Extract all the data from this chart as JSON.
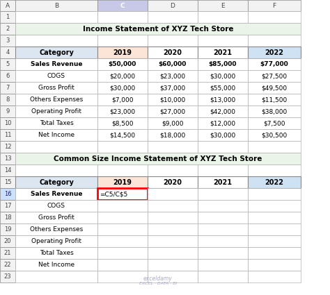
{
  "title1": "Income Statement of XYZ Tech Store",
  "title2": "Common Size Income Statement of XYZ Tech Store",
  "income_rows": [
    [
      "Sales Revenue",
      "$50,000",
      "$60,000",
      "$85,000",
      "$77,000"
    ],
    [
      "COGS",
      "$20,000",
      "$23,000",
      "$30,000",
      "$27,500"
    ],
    [
      "Gross Profit",
      "$30,000",
      "$37,000",
      "$55,000",
      "$49,500"
    ],
    [
      "Others Expenses",
      "$7,000",
      "$10,000",
      "$13,000",
      "$11,500"
    ],
    [
      "Operating Profit",
      "$23,000",
      "$27,000",
      "$42,000",
      "$38,000"
    ],
    [
      "Total Taxes",
      "$8,500",
      "$9,000",
      "$12,000",
      "$7,500"
    ],
    [
      "Net Income",
      "$14,500",
      "$18,000",
      "$30,000",
      "$30,500"
    ]
  ],
  "common_rows": [
    [
      "Sales Revenue",
      "=C5/C$5",
      "",
      "",
      ""
    ],
    [
      "COGS",
      "",
      "",
      "",
      ""
    ],
    [
      "Gross Profit",
      "",
      "",
      "",
      ""
    ],
    [
      "Others Expenses",
      "",
      "",
      "",
      ""
    ],
    [
      "Operating Profit",
      "",
      "",
      "",
      ""
    ],
    [
      "Total Taxes",
      "",
      "",
      "",
      ""
    ],
    [
      "Net Income",
      "",
      "",
      "",
      ""
    ]
  ],
  "col_labels": [
    "A",
    "B",
    "C",
    "D",
    "E",
    "F"
  ],
  "title_bg": "#eaf4e8",
  "col2019_bg": "#fce4d6",
  "col2020_bg": "#ffffff",
  "col2021_bg": "#ffffff",
  "col2022_bg": "#cfe2f3",
  "header_row_bg": "#dce6f1",
  "selected_cell_border": "#ff0000",
  "cell_border": "#b0b0b0",
  "row_label_bg": "#f2f2f2",
  "col_label_bg": "#f2f2f2",
  "col_c_selected_bg": "#c8c8e8",
  "watermark_line1": "exceldamy",
  "watermark_line2": "EXCEL · DATA · BI"
}
